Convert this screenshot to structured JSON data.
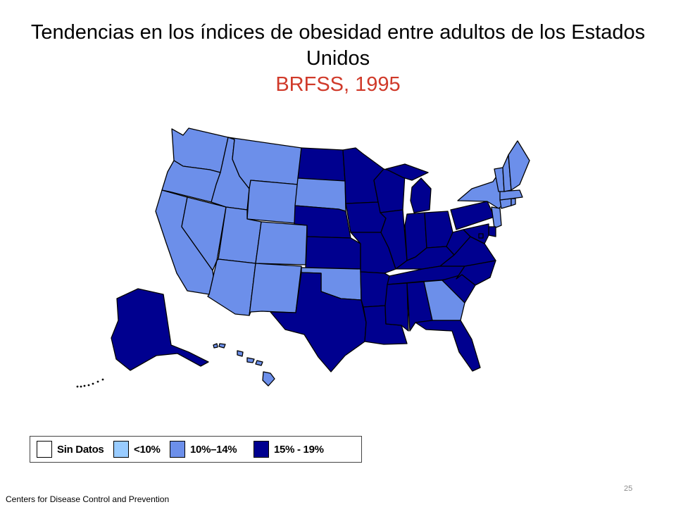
{
  "title": "Tendencias en los índices de obesidad entre adultos de los Estados Unidos",
  "subtitle": "BRFSS, 1995",
  "legend": [
    {
      "label": "Sin Datos",
      "color": "#ffffff"
    },
    {
      "label": "<10%",
      "color": "#99ccff"
    },
    {
      "label": "10%–14%",
      "color": "#6c8fea"
    },
    {
      "label": "15% - 19%",
      "color": "#00008f"
    }
  ],
  "colors": {
    "title": "#000000",
    "subtitle": "#d03a2a",
    "outline": "#000000"
  },
  "source": "Centers for Disease Control and Prevention",
  "page_number": "25",
  "states": {
    "WA": "10%–14%",
    "OR": "10%–14%",
    "CA": "10%–14%",
    "NV": "10%–14%",
    "ID": "10%–14%",
    "MT": "10%–14%",
    "WY": "10%–14%",
    "UT": "10%–14%",
    "CO": "10%–14%",
    "AZ": "10%–14%",
    "NM": "10%–14%",
    "ND": "15% - 19%",
    "SD": "10%–14%",
    "NE": "15% - 19%",
    "KS": "15% - 19%",
    "OK": "10%–14%",
    "TX": "15% - 19%",
    "MN": "15% - 19%",
    "IA": "15% - 19%",
    "MO": "15% - 19%",
    "AR": "15% - 19%",
    "LA": "15% - 19%",
    "WI": "15% - 19%",
    "IL": "15% - 19%",
    "MI": "15% - 19%",
    "IN": "15% - 19%",
    "OH": "15% - 19%",
    "KY": "15% - 19%",
    "TN": "15% - 19%",
    "MS": "15% - 19%",
    "AL": "15% - 19%",
    "GA": "10%–14%",
    "FL": "15% - 19%",
    "SC": "15% - 19%",
    "NC": "15% - 19%",
    "VA": "15% - 19%",
    "WV": "15% - 19%",
    "PA": "15% - 19%",
    "NY": "10%–14%",
    "NJ": "10%–14%",
    "DE": "15% - 19%",
    "MD": "15% - 19%",
    "DC": "15% - 19%",
    "CT": "10%–14%",
    "RI": "10%–14%",
    "MA": "10%–14%",
    "VT": "10%–14%",
    "NH": "10%–14%",
    "ME": "10%–14%",
    "AK": "15% - 19%",
    "HI": "10%–14%"
  }
}
